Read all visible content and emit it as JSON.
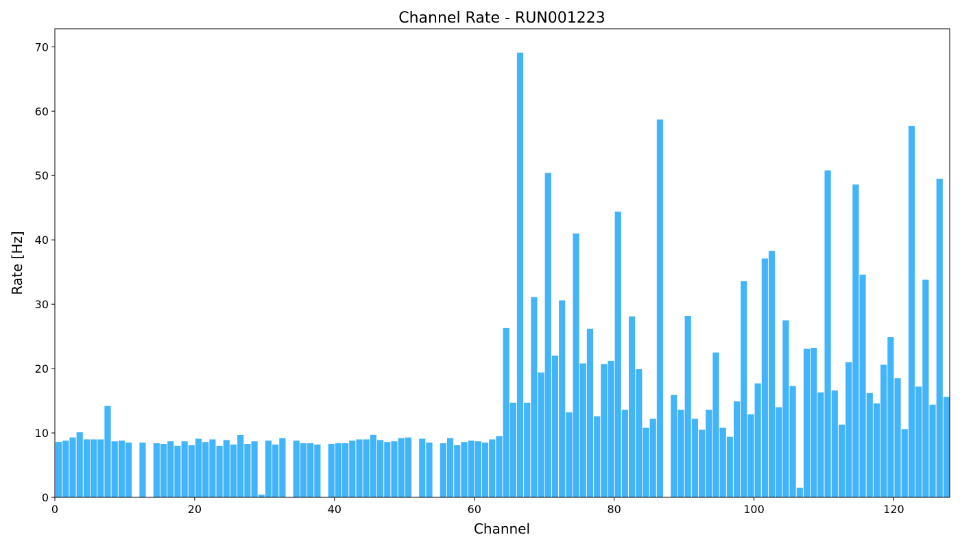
{
  "chart_data": {
    "type": "bar",
    "title": "Channel Rate - RUN001223",
    "xlabel": "Channel",
    "ylabel": "Rate [Hz]",
    "xlim": [
      0,
      128
    ],
    "ylim": [
      0,
      72.8
    ],
    "xticks": [
      0,
      20,
      40,
      60,
      80,
      100,
      120
    ],
    "yticks": [
      0,
      10,
      20,
      30,
      40,
      50,
      60,
      70
    ],
    "grid": false,
    "bar_color": "#42b4f9",
    "x": [
      0,
      1,
      2,
      3,
      4,
      5,
      6,
      7,
      8,
      9,
      10,
      11,
      12,
      13,
      14,
      15,
      16,
      17,
      18,
      19,
      20,
      21,
      22,
      23,
      24,
      25,
      26,
      27,
      28,
      29,
      30,
      31,
      32,
      33,
      34,
      35,
      36,
      37,
      38,
      39,
      40,
      41,
      42,
      43,
      44,
      45,
      46,
      47,
      48,
      49,
      50,
      51,
      52,
      53,
      54,
      55,
      56,
      57,
      58,
      59,
      60,
      61,
      62,
      63,
      64,
      65,
      66,
      67,
      68,
      69,
      70,
      71,
      72,
      73,
      74,
      75,
      76,
      77,
      78,
      79,
      80,
      81,
      82,
      83,
      84,
      85,
      86,
      87,
      88,
      89,
      90,
      91,
      92,
      93,
      94,
      95,
      96,
      97,
      98,
      99,
      100,
      101,
      102,
      103,
      104,
      105,
      106,
      107,
      108,
      109,
      110,
      111,
      112,
      113,
      114,
      115,
      116,
      117,
      118,
      119,
      120,
      121,
      122,
      123,
      124,
      125,
      126,
      127
    ],
    "values": [
      8.6,
      8.8,
      9.3,
      10.1,
      9.0,
      9.0,
      9.0,
      14.2,
      8.7,
      8.8,
      8.5,
      0,
      8.5,
      0,
      8.4,
      8.3,
      8.7,
      8.0,
      8.7,
      8.1,
      9.1,
      8.6,
      9.0,
      8.0,
      8.9,
      8.2,
      9.7,
      8.3,
      8.7,
      0.4,
      8.8,
      8.2,
      9.2,
      0,
      8.8,
      8.4,
      8.4,
      8.2,
      0,
      8.3,
      8.4,
      8.4,
      8.8,
      9.0,
      9.0,
      9.7,
      8.9,
      8.6,
      8.7,
      9.2,
      9.3,
      0,
      9.1,
      8.5,
      0,
      8.4,
      9.2,
      8.1,
      8.6,
      8.8,
      8.7,
      8.5,
      9.0,
      9.5,
      26.3,
      14.7,
      69.1,
      14.7,
      31.1,
      19.4,
      50.4,
      22.0,
      30.6,
      13.2,
      41.0,
      20.8,
      26.2,
      12.6,
      20.7,
      21.2,
      44.4,
      13.6,
      28.1,
      19.9,
      10.8,
      12.2,
      58.7,
      0,
      15.9,
      13.6,
      28.2,
      12.2,
      10.5,
      13.6,
      22.5,
      10.8,
      9.4,
      14.9,
      33.6,
      12.9,
      17.7,
      37.1,
      38.3,
      14.0,
      27.5,
      17.3,
      1.5,
      23.1,
      23.2,
      16.3,
      50.8,
      16.6,
      11.3,
      21.0,
      48.6,
      34.6,
      16.2,
      14.6,
      20.6,
      24.9,
      18.5,
      10.6,
      57.7,
      17.2,
      33.8,
      14.4,
      49.5,
      15.6
    ]
  }
}
